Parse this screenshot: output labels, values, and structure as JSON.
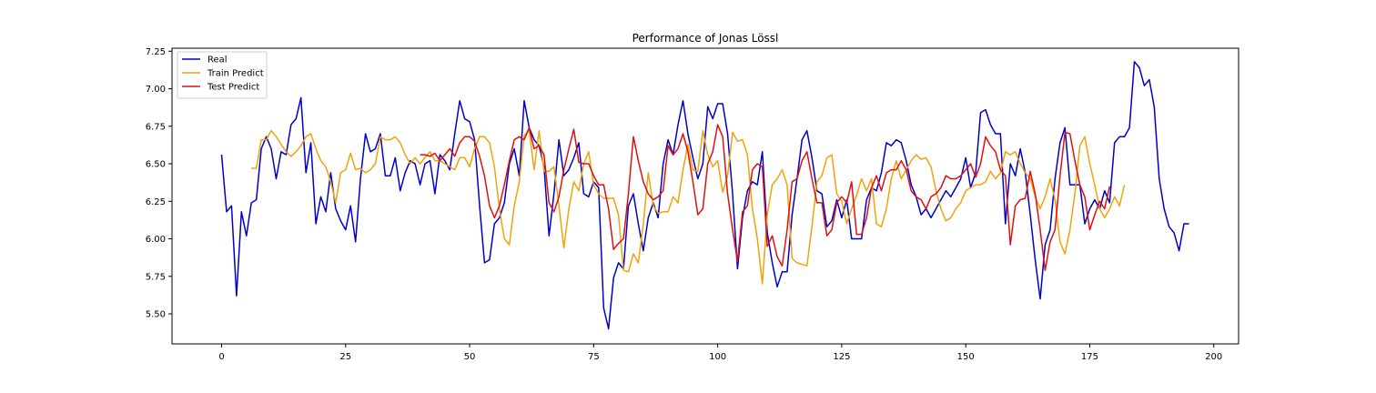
{
  "chart_data": {
    "type": "line",
    "title": "Performance of Jonas Lössl",
    "xlabel": "",
    "ylabel": "",
    "xlim": [
      -10,
      205
    ],
    "ylim": [
      5.3,
      7.27
    ],
    "xticks": [
      0,
      25,
      50,
      75,
      100,
      125,
      150,
      175,
      200
    ],
    "yticks": [
      5.5,
      5.75,
      6.0,
      6.25,
      6.5,
      6.75,
      7.0,
      7.25
    ],
    "ytick_labels": [
      "5.50",
      "5.75",
      "6.00",
      "6.25",
      "6.50",
      "6.75",
      "7.00",
      "7.25"
    ],
    "grid": false,
    "legend_position": "upper-left",
    "series": [
      {
        "name": "Real",
        "color": "#0000cc",
        "x_start": 0,
        "values": [
          6.56,
          6.18,
          6.22,
          5.62,
          6.18,
          6.02,
          6.24,
          6.26,
          6.6,
          6.68,
          6.6,
          6.4,
          6.58,
          6.56,
          6.76,
          6.8,
          6.94,
          6.44,
          6.64,
          6.1,
          6.28,
          6.18,
          6.44,
          6.2,
          6.12,
          6.06,
          6.22,
          5.98,
          6.4,
          6.7,
          6.58,
          6.6,
          6.7,
          6.42,
          6.42,
          6.54,
          6.32,
          6.44,
          6.52,
          6.5,
          6.36,
          6.5,
          6.52,
          6.3,
          6.56,
          6.52,
          6.46,
          6.7,
          6.92,
          6.8,
          6.78,
          6.66,
          6.22,
          5.84,
          5.86,
          6.1,
          6.14,
          6.24,
          6.5,
          6.6,
          6.42,
          6.92,
          6.74,
          6.66,
          6.62,
          6.48,
          6.02,
          6.3,
          6.66,
          6.42,
          6.46,
          6.54,
          6.64,
          6.3,
          6.28,
          6.38,
          6.34,
          5.54,
          5.4,
          5.74,
          5.84,
          5.8,
          6.22,
          6.3,
          6.1,
          5.92,
          6.14,
          6.24,
          6.14,
          6.5,
          6.66,
          6.56,
          6.76,
          6.92,
          6.7,
          6.54,
          6.4,
          6.5,
          6.88,
          6.8,
          6.9,
          6.9,
          6.7,
          6.3,
          5.8,
          6.14,
          6.32,
          6.38,
          6.36,
          6.58,
          6.04,
          5.84,
          5.68,
          5.78,
          5.78,
          6.16,
          6.4,
          6.66,
          6.72,
          6.54,
          6.32,
          6.3,
          6.08,
          6.12,
          6.26,
          6.14,
          6.26,
          6.0,
          6.0,
          6.0,
          6.26,
          6.34,
          6.32,
          6.44,
          6.64,
          6.62,
          6.66,
          6.64,
          6.52,
          6.36,
          6.28,
          6.16,
          6.2,
          6.14,
          6.2,
          6.26,
          6.32,
          6.28,
          6.34,
          6.4,
          6.54,
          6.34,
          6.44,
          6.84,
          6.86,
          6.76,
          6.7,
          6.7,
          6.1,
          6.5,
          6.42,
          6.6,
          6.44,
          6.16,
          5.86,
          5.6,
          5.96,
          6.06,
          6.4,
          6.64,
          6.74,
          6.36,
          6.36,
          6.36,
          6.1,
          6.2,
          6.26,
          6.2,
          6.32,
          6.24,
          6.64,
          6.68,
          6.68,
          6.74,
          7.18,
          7.14,
          7.02,
          7.06,
          6.88,
          6.4,
          6.2,
          6.08,
          6.04,
          5.92,
          6.1,
          6.1
        ]
      },
      {
        "name": "Train Predict",
        "color": "#f0a30a",
        "x_start": 6,
        "values": [
          6.47,
          6.47,
          6.66,
          6.66,
          6.72,
          6.68,
          6.63,
          6.58,
          6.55,
          6.58,
          6.62,
          6.68,
          6.7,
          6.6,
          6.52,
          6.48,
          6.38,
          6.24,
          6.44,
          6.46,
          6.57,
          6.46,
          6.47,
          6.44,
          6.46,
          6.5,
          6.68,
          6.66,
          6.66,
          6.68,
          6.64,
          6.56,
          6.5,
          6.54,
          6.5,
          6.54,
          6.58,
          6.52,
          6.52,
          6.5,
          6.48,
          6.46,
          6.54,
          6.54,
          6.48,
          6.6,
          6.68,
          6.68,
          6.64,
          6.48,
          6.2,
          6.0,
          5.96,
          6.22,
          6.38,
          6.69,
          6.72,
          6.46,
          6.72,
          6.45,
          6.45,
          6.48,
          6.22,
          5.94,
          6.2,
          6.38,
          6.32,
          6.5,
          6.58,
          6.36,
          6.3,
          6.27,
          6.27,
          6.27,
          6.16,
          5.79,
          5.78,
          5.9,
          5.84,
          6.1,
          6.44,
          6.22,
          6.17,
          6.18,
          6.18,
          6.28,
          6.24,
          6.46,
          6.63,
          6.46,
          6.45,
          6.72,
          6.56,
          6.48,
          6.52,
          6.31,
          6.42,
          6.71,
          6.65,
          6.66,
          6.56,
          6.2,
          6.0,
          5.7,
          6.16,
          6.36,
          6.4,
          6.46,
          6.36,
          5.87,
          5.84,
          5.83,
          5.82,
          6.08,
          6.38,
          6.42,
          6.54,
          6.56,
          6.3,
          6.25,
          6.1,
          6.2,
          6.29,
          6.4,
          6.32,
          6.4,
          6.1,
          6.08,
          6.2,
          6.4,
          6.52,
          6.4,
          6.46,
          6.52,
          6.56,
          6.53,
          6.54,
          6.48,
          6.32,
          6.2,
          6.12,
          6.14,
          6.2,
          6.24,
          6.32,
          6.34,
          6.36,
          6.36,
          6.38,
          6.45,
          6.4,
          6.44,
          6.58,
          6.56,
          6.58,
          6.5,
          6.44,
          6.4,
          6.28,
          6.2,
          6.28,
          6.4,
          6.26,
          5.98,
          5.9,
          6.06,
          6.3,
          6.62,
          6.68,
          6.5,
          6.36,
          6.2,
          6.14,
          6.2,
          6.28,
          6.22,
          6.36
        ]
      },
      {
        "name": "Test Predict",
        "color": "#e01010",
        "x_start": 40,
        "values": [
          6.56,
          6.56,
          6.55,
          6.57,
          6.52,
          6.56,
          6.6,
          6.55,
          6.64,
          6.68,
          6.68,
          6.65,
          6.55,
          6.42,
          6.22,
          6.14,
          6.22,
          6.36,
          6.52,
          6.66,
          6.68,
          6.66,
          6.74,
          6.6,
          6.62,
          6.56,
          6.24,
          6.18,
          6.28,
          6.46,
          6.6,
          6.73,
          6.51,
          6.5,
          6.5,
          6.42,
          6.36,
          6.36,
          6.2,
          5.93,
          5.97,
          6.0,
          6.3,
          6.68,
          6.52,
          6.38,
          6.3,
          6.26,
          6.28,
          6.32,
          6.62,
          6.56,
          6.6,
          6.7,
          6.58,
          6.38,
          6.16,
          6.2,
          6.5,
          6.58,
          6.76,
          6.68,
          6.3,
          6.06,
          5.85,
          6.18,
          6.22,
          6.46,
          6.5,
          6.48,
          5.95,
          6.02,
          5.88,
          5.82,
          6.06,
          6.38,
          6.4,
          6.52,
          6.58,
          6.4,
          6.24,
          6.24,
          6.02,
          6.06,
          6.24,
          6.28,
          6.24,
          6.38,
          6.03,
          6.03,
          6.14,
          6.34,
          6.42,
          6.32,
          6.44,
          6.46,
          6.46,
          6.52,
          6.46,
          6.32,
          6.28,
          6.26,
          6.2,
          6.28,
          6.3,
          6.34,
          6.42,
          6.4,
          6.4,
          6.42,
          6.46,
          6.5,
          6.41,
          6.5,
          6.68,
          6.62,
          6.58,
          6.46,
          6.42,
          5.96,
          6.22,
          6.26,
          6.27,
          6.45,
          6.3,
          6.06,
          5.79,
          5.98,
          6.06,
          6.42,
          6.71,
          6.7,
          6.52,
          6.36,
          6.28,
          6.06,
          6.16,
          6.25,
          6.2,
          6.35
        ]
      }
    ]
  }
}
